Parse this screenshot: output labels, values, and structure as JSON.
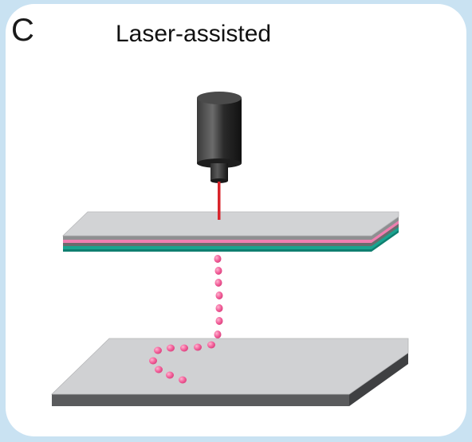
{
  "panel": {
    "letter": "C",
    "title": "Laser-assisted"
  },
  "colors": {
    "background_border": "#c9e2f2",
    "panel_fill": "#ffffff",
    "laser_body": "#2b2b2b",
    "laser_beam": "#d8242b",
    "donor_slide_top": "#d2d3d5",
    "pink_layer": "#f07fb0",
    "teal_layer": "#1aa38f",
    "droplet": "#f2609a",
    "receiver_slide_top": "#d0d1d3",
    "receiver_slide_edge": "#5a5b5d"
  },
  "diagram": {
    "components": [
      "laser-source",
      "laser-beam",
      "donor-slide",
      "pink-layer",
      "teal-layer",
      "ejected-droplets",
      "receiver-substrate",
      "printed-pattern"
    ]
  }
}
